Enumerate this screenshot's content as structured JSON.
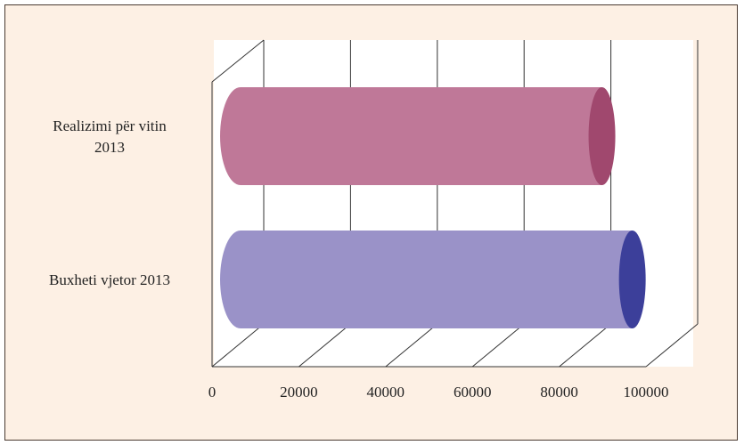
{
  "colors": {
    "frame_bg": "#fdf0e4",
    "plot_bg": "#ffffff",
    "grid": "#333333"
  },
  "chart_data": {
    "type": "bar",
    "orientation": "horizontal",
    "style": "3d-cylinder",
    "categories": [
      "Realizimi për vitin 2013",
      "Buxheti vjetor 2013"
    ],
    "category_label_lines": [
      [
        "Realizimi për vitin",
        "2013"
      ],
      [
        "Buxheti vjetor 2013"
      ]
    ],
    "values": [
      88000,
      95000
    ],
    "bar_colors": [
      {
        "body": "#bf7898",
        "cap": "#a0486e"
      },
      {
        "body": "#9a92c8",
        "cap": "#3c3f9a"
      }
    ],
    "x_ticks": [
      0,
      20000,
      40000,
      60000,
      80000,
      100000
    ],
    "xlim": [
      0,
      100000
    ],
    "grid": true,
    "legend": "none"
  }
}
